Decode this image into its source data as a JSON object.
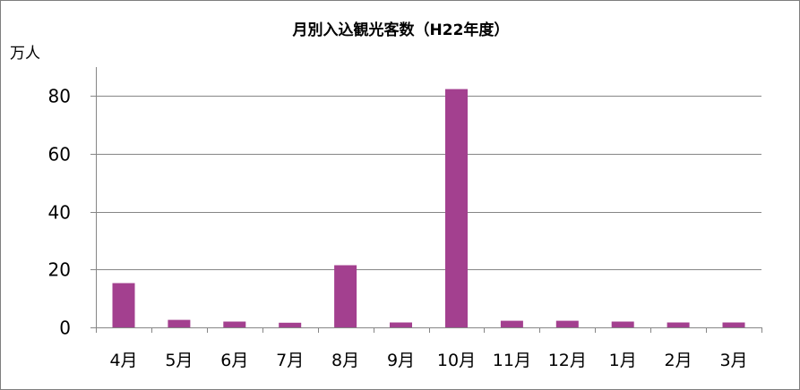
{
  "chart_data": {
    "type": "bar",
    "title": "月別入込観光客数（H22年度）",
    "ylabel": "万人",
    "xlabel": "",
    "categories": [
      "4月",
      "5月",
      "6月",
      "7月",
      "8月",
      "9月",
      "10月",
      "11月",
      "12月",
      "1月",
      "2月",
      "3月"
    ],
    "values": [
      15.3,
      2.6,
      2.0,
      1.6,
      21.5,
      1.7,
      82.4,
      2.3,
      2.3,
      2.0,
      1.7,
      1.7
    ],
    "ylim": [
      0,
      90
    ],
    "yticks": [
      0,
      20,
      40,
      60,
      80
    ],
    "grid": true,
    "legend": "none",
    "bar_color": "#a3408f",
    "grid_color": "#868686"
  }
}
